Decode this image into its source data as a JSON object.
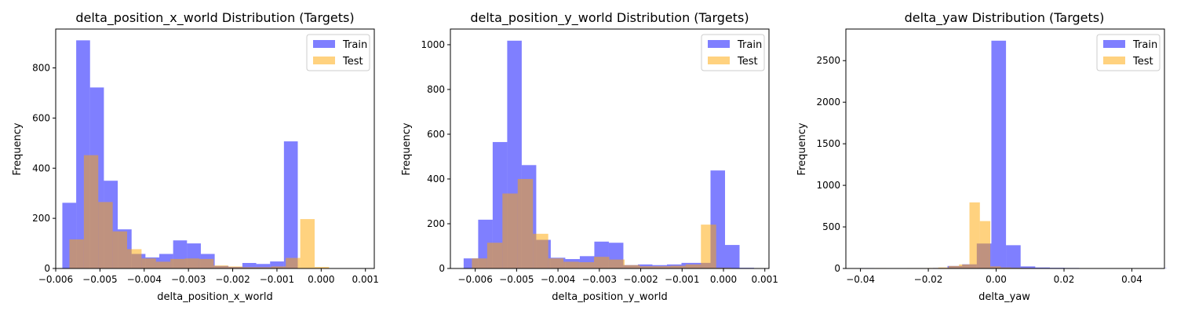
{
  "colors": {
    "train": "#0000ff",
    "test": "#ffa500",
    "bar_alpha": 0.5,
    "frame": "#000000",
    "legend_border": "#cccccc"
  },
  "chart_data": [
    {
      "type": "bar",
      "title": "delta_position_x_world Distribution (Targets)",
      "xlabel": "delta_position_x_world",
      "ylabel": "Frequency",
      "xlim": [
        -0.006,
        0.0012
      ],
      "ylim": [
        0,
        955
      ],
      "xticks": [
        -0.006,
        -0.005,
        -0.004,
        -0.003,
        -0.002,
        -0.001,
        0.0,
        0.001
      ],
      "xtick_labels": [
        "−0.006",
        "−0.005",
        "−0.004",
        "−0.003",
        "−0.002",
        "−0.001",
        "0.000",
        "0.001"
      ],
      "yticks": [
        0,
        200,
        400,
        600,
        800
      ],
      "ytick_labels": [
        "0",
        "200",
        "400",
        "600",
        "800"
      ],
      "legend": "top-right",
      "series": [
        {
          "name": "Train",
          "bin_start": -0.00585,
          "bin_width": 0.000313,
          "counts": [
            262,
            910,
            722,
            350,
            156,
            58,
            44,
            58,
            112,
            100,
            58,
            10,
            6,
            22,
            18,
            28,
            507
          ]
        },
        {
          "name": "Test",
          "bin_start": -0.00569,
          "bin_width": 0.000326,
          "counts": [
            116,
            452,
            265,
            148,
            77,
            40,
            27,
            38,
            40,
            38,
            12,
            8,
            5,
            5,
            8,
            42,
            197,
            6
          ]
        }
      ]
    },
    {
      "type": "bar",
      "title": "delta_position_y_world Distribution (Targets)",
      "xlabel": "delta_position_y_world",
      "ylabel": "Frequency",
      "xlim": [
        -0.0066,
        0.0011
      ],
      "ylim": [
        0,
        1070
      ],
      "xticks": [
        -0.006,
        -0.005,
        -0.004,
        -0.003,
        -0.002,
        -0.001,
        0.0,
        0.001
      ],
      "xtick_labels": [
        "−0.006",
        "−0.005",
        "−0.004",
        "−0.003",
        "−0.002",
        "−0.001",
        "0.000",
        "0.001"
      ],
      "yticks": [
        0,
        200,
        400,
        600,
        800,
        1000
      ],
      "ytick_labels": [
        "0",
        "200",
        "400",
        "600",
        "800",
        "1000"
      ],
      "legend": "top-right",
      "series": [
        {
          "name": "Train",
          "bin_start": -0.00628,
          "bin_width": 0.000351,
          "counts": [
            45,
            218,
            565,
            1018,
            462,
            128,
            48,
            42,
            55,
            120,
            115,
            15,
            18,
            15,
            18,
            25,
            25,
            438,
            105,
            3
          ]
        },
        {
          "name": "Test",
          "bin_start": -0.00608,
          "bin_width": 0.000369,
          "counts": [
            45,
            115,
            335,
            400,
            155,
            45,
            30,
            28,
            52,
            40,
            15,
            10,
            10,
            12,
            18,
            196,
            3
          ]
        }
      ]
    },
    {
      "type": "bar",
      "title": "delta_yaw Distribution (Targets)",
      "xlabel": "delta_yaw",
      "ylabel": "Frequency",
      "xlim": [
        -0.0443,
        0.0496
      ],
      "ylim": [
        0,
        2880
      ],
      "xticks": [
        -0.04,
        -0.02,
        0.0,
        0.02,
        0.04
      ],
      "xtick_labels": [
        "−0.04",
        "−0.02",
        "0.00",
        "0.02",
        "0.04"
      ],
      "yticks": [
        0,
        500,
        1000,
        1500,
        2000,
        2500
      ],
      "ytick_labels": [
        "0",
        "500",
        "1000",
        "1500",
        "2000",
        "2500"
      ],
      "legend": "top-right",
      "series": [
        {
          "name": "Train",
          "bin_start": -0.0402,
          "bin_width": 0.00431,
          "counts": [
            5,
            3,
            3,
            3,
            3,
            6,
            30,
            50,
            300,
            2740,
            280,
            25,
            12,
            8,
            6,
            4,
            3,
            3,
            3,
            3,
            3
          ]
        },
        {
          "name": "Test",
          "bin_start": -0.0355,
          "bin_width": 0.00307,
          "counts": [
            5,
            4,
            4,
            5,
            5,
            6,
            12,
            30,
            48,
            795,
            570,
            25,
            12,
            8,
            6,
            5
          ]
        }
      ]
    }
  ]
}
